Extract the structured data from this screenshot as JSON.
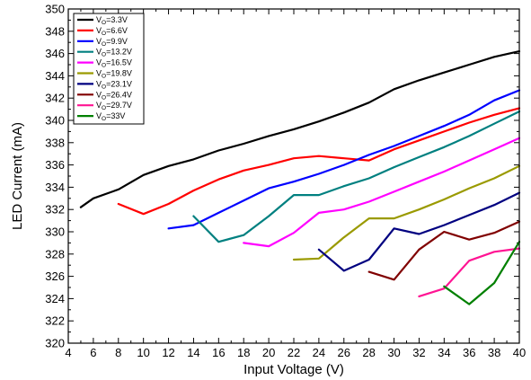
{
  "chart_data": {
    "type": "line",
    "title": "",
    "xlabel": "Input Voltage (V)",
    "ylabel": "LED Current (mA)",
    "xlim": [
      4,
      40
    ],
    "ylim": [
      320,
      350
    ],
    "xticks": [
      4,
      6,
      8,
      10,
      12,
      14,
      16,
      18,
      20,
      22,
      24,
      26,
      28,
      30,
      32,
      34,
      36,
      38,
      40
    ],
    "yticks": [
      320,
      322,
      324,
      326,
      328,
      330,
      332,
      334,
      336,
      338,
      340,
      342,
      344,
      346,
      348,
      350
    ],
    "grid": false,
    "legend_position": "top-left",
    "series": [
      {
        "name_main": "V",
        "name_sub": "O",
        "name_rest": "=3.3V",
        "color": "#000000",
        "x": [
          5,
          6,
          8,
          10,
          12,
          14,
          16,
          18,
          20,
          22,
          24,
          26,
          28,
          30,
          32,
          34,
          36,
          38,
          40
        ],
        "y": [
          332.2,
          333.0,
          333.8,
          335.1,
          335.9,
          336.5,
          337.3,
          337.9,
          338.6,
          339.2,
          339.9,
          340.7,
          341.6,
          342.8,
          343.6,
          344.3,
          345.0,
          345.7,
          346.2
        ]
      },
      {
        "name_main": "V",
        "name_sub": "O",
        "name_rest": "=6.6V",
        "color": "#ff0000",
        "x": [
          8,
          10,
          12,
          14,
          16,
          18,
          20,
          22,
          24,
          26,
          28,
          30,
          32,
          34,
          36,
          38,
          40
        ],
        "y": [
          332.5,
          331.6,
          332.5,
          333.7,
          334.7,
          335.5,
          336.0,
          336.6,
          336.8,
          336.6,
          336.4,
          337.4,
          338.2,
          339.0,
          339.8,
          340.5,
          341.1
        ]
      },
      {
        "name_main": "V",
        "name_sub": "O",
        "name_rest": "=9.9V",
        "color": "#0000ff",
        "x": [
          12,
          14,
          16,
          18,
          20,
          22,
          24,
          26,
          28,
          30,
          32,
          34,
          36,
          38,
          40
        ],
        "y": [
          330.3,
          330.6,
          331.7,
          332.8,
          333.9,
          334.5,
          335.2,
          336.0,
          336.9,
          337.7,
          338.6,
          339.5,
          340.5,
          341.8,
          342.7
        ]
      },
      {
        "name_main": "V",
        "name_sub": "O",
        "name_rest": "=13.2V",
        "color": "#008080",
        "x": [
          14,
          16,
          18,
          20,
          22,
          24,
          26,
          28,
          30,
          32,
          34,
          36,
          38,
          40
        ],
        "y": [
          331.4,
          329.1,
          329.7,
          331.4,
          333.3,
          333.3,
          334.1,
          334.8,
          335.8,
          336.7,
          337.6,
          338.6,
          339.7,
          340.8
        ]
      },
      {
        "name_main": "V",
        "name_sub": "O",
        "name_rest": "=16.5V",
        "color": "#ff00ff",
        "x": [
          18,
          20,
          22,
          24,
          26,
          28,
          30,
          32,
          34,
          36,
          38,
          40
        ],
        "y": [
          329.0,
          328.7,
          329.9,
          331.7,
          332.0,
          332.7,
          333.6,
          334.5,
          335.4,
          336.4,
          337.4,
          338.4
        ]
      },
      {
        "name_main": "V",
        "name_sub": "O",
        "name_rest": "=19.8V",
        "color": "#9a9a00",
        "x": [
          22,
          24,
          26,
          28,
          30,
          32,
          34,
          36,
          38,
          40
        ],
        "y": [
          327.5,
          327.6,
          329.5,
          331.2,
          331.2,
          332.0,
          332.9,
          333.9,
          334.8,
          335.9
        ]
      },
      {
        "name_main": "V",
        "name_sub": "O",
        "name_rest": "=23.1V",
        "color": "#000080",
        "x": [
          24,
          26,
          28,
          30,
          32,
          34,
          36,
          38,
          40
        ],
        "y": [
          328.4,
          326.5,
          327.5,
          330.3,
          329.8,
          330.6,
          331.5,
          332.4,
          333.5
        ]
      },
      {
        "name_main": "V",
        "name_sub": "O",
        "name_rest": "=26.4V",
        "color": "#800000",
        "x": [
          28,
          30,
          32,
          34,
          36,
          38,
          40
        ],
        "y": [
          326.4,
          325.7,
          328.4,
          330.0,
          329.3,
          329.9,
          330.9
        ]
      },
      {
        "name_main": "V",
        "name_sub": "O",
        "name_rest": "=29.7V",
        "color": "#ff1493",
        "x": [
          32,
          34,
          36,
          38,
          40
        ],
        "y": [
          324.2,
          324.9,
          327.4,
          328.2,
          328.5
        ]
      },
      {
        "name_main": "V",
        "name_sub": "O",
        "name_rest": "=33V",
        "color": "#008000",
        "x": [
          34,
          36,
          38,
          40
        ],
        "y": [
          325.1,
          323.5,
          325.4,
          329.1
        ]
      }
    ]
  }
}
